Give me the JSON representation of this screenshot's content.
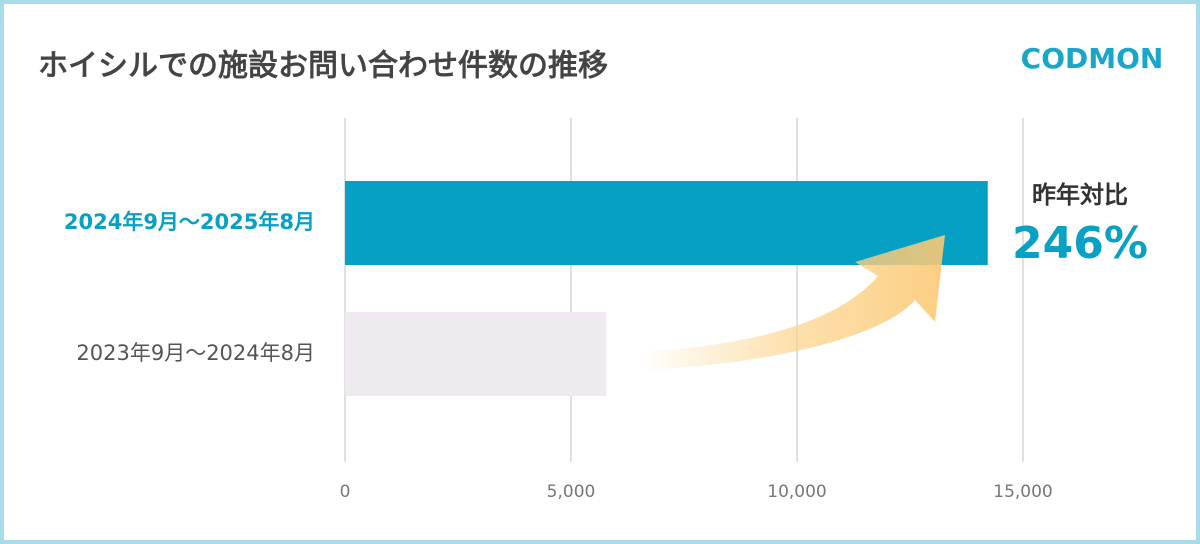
{
  "chart_data": {
    "type": "bar",
    "orientation": "horizontal",
    "title": "ホイシルでの施設お問い合わせ件数の推移",
    "logo": "CODMON",
    "categories": [
      "2024年9月～2025年8月",
      "2023年9月～2024年8月"
    ],
    "values": [
      14220,
      5780
    ],
    "colors": [
      "#05a0c4",
      "#efeaef"
    ],
    "xlim": [
      0,
      15000
    ],
    "xticks": [
      0,
      {
        "value": 5000,
        "label": "5,000"
      },
      {
        "value": 10000,
        "label": "10,000"
      },
      {
        "value": 15000,
        "label": "15,000"
      }
    ],
    "grid": true,
    "annotation": {
      "label": "昨年対比",
      "value": "246%"
    }
  }
}
